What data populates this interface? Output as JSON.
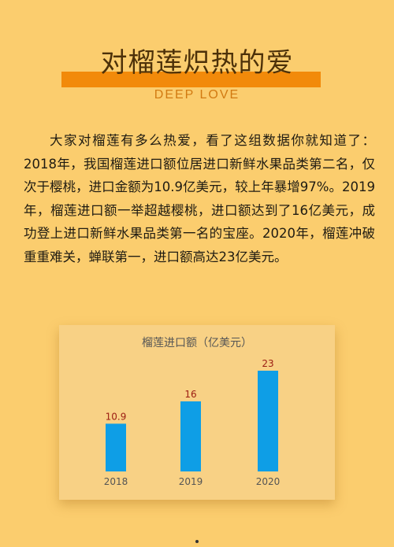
{
  "header": {
    "title": "对榴莲炽热的爱",
    "subtitle": "DEEP LOVE"
  },
  "article": {
    "paragraph": "大家对榴莲有多么热爱，看了这组数据你就知道了：2018年，我国榴莲进口额位居进口新鲜水果品类第二名，仅次于樱桃，进口金额为10.9亿美元，较上年暴增97%。2019年，榴莲进口额一举超越樱桃，进口额达到了16亿美元，成功登上进口新鲜水果品类第一名的宝座。2020年，榴莲冲破重重难关，蝉联第一，进口额高达23亿美元。"
  },
  "chart_data": {
    "type": "bar",
    "title": "榴莲进口额（亿美元）",
    "categories": [
      "2018",
      "2019",
      "2020"
    ],
    "values": [
      10.9,
      16,
      23
    ],
    "data_labels": [
      "10.9",
      "16",
      "23"
    ],
    "ylim": [
      0,
      23
    ],
    "grid": false,
    "legend": "none",
    "colors": {
      "bar": "#0e9ee6",
      "value_label": "#9b1c12"
    }
  },
  "colors": {
    "background": "#fbcd6e",
    "accent_bar": "#f28a0a",
    "subtitle": "#d27a11",
    "chart_card": "#f8d185"
  }
}
